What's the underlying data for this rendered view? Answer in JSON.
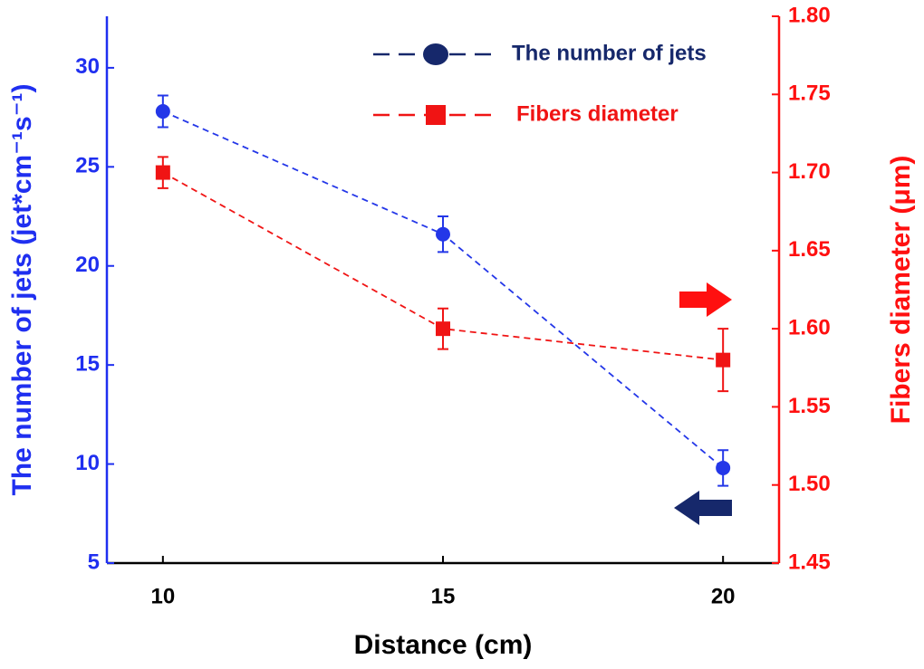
{
  "chart_data": {
    "type": "line",
    "x_label": "Distance (cm)",
    "y_label": "The number of jets (jet*cm⁻¹s⁻¹)",
    "y2_label": "Fibers diameter (μm)",
    "x": [
      10,
      15,
      20
    ],
    "xlim": [
      9,
      21
    ],
    "xticks": [
      10,
      15,
      20
    ],
    "ylim": [
      5,
      32.6
    ],
    "yticks": [
      5,
      10,
      15,
      20,
      25,
      30
    ],
    "y2lim": [
      1.45,
      1.8
    ],
    "y2ticks": [
      1.45,
      {
        "value": 1.5,
        "label": "1.50"
      },
      1.55,
      {
        "value": 1.6,
        "label": "1.60"
      },
      1.65,
      {
        "value": 1.7,
        "label": "1.70"
      },
      1.75,
      {
        "value": 1.8,
        "label": "1.80"
      }
    ],
    "y_color": "#1f2ff0",
    "y2_color": "#ff1010",
    "series": [
      {
        "name": "The number of jets",
        "color": "#2437e8",
        "marker": "circle",
        "values": [
          27.8,
          21.6,
          9.8
        ],
        "errors": [
          0.8,
          0.9,
          0.9
        ]
      },
      {
        "name": "Fibers diameter",
        "color": "#f01414",
        "marker": "square",
        "axis": "y2",
        "values": [
          1.7,
          1.6,
          1.58
        ],
        "errors": [
          0.01,
          0.013,
          0.02
        ]
      }
    ]
  }
}
